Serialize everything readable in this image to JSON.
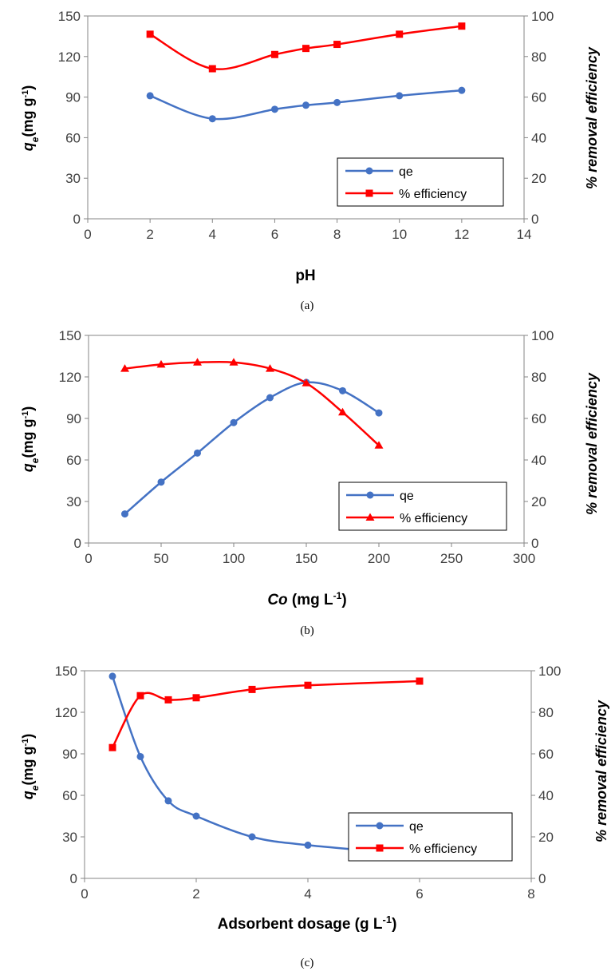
{
  "colors": {
    "qe": "#4472C4",
    "efficiency": "#FF0000",
    "axis": "#868686"
  },
  "chart_data": [
    {
      "type": "line",
      "caption": "(a)",
      "xlabel": "pH",
      "ylabel_main": "q",
      "ylabel_sub": "e",
      "ylabel_rest": "(mg g",
      "ylabel_sup": "-1",
      "ylabel_end": ")",
      "y2label": "% removal efficiency",
      "xlim": [
        0,
        14
      ],
      "ylim": [
        0,
        150
      ],
      "y2lim": [
        0,
        100
      ],
      "xticks": [
        0,
        2,
        4,
        6,
        8,
        10,
        12,
        14
      ],
      "yticks": [
        0,
        30,
        60,
        90,
        120,
        150
      ],
      "y2ticks": [
        0,
        20,
        40,
        60,
        80,
        100
      ],
      "legend_position": "bottom-right",
      "series": [
        {
          "name": "qe",
          "axis": "left",
          "marker": "circle",
          "x": [
            2,
            4,
            6,
            7,
            8,
            10,
            12
          ],
          "y": [
            91,
            74,
            81,
            84,
            86,
            91,
            95
          ]
        },
        {
          "name": "% efficiency",
          "axis": "right",
          "marker": "square",
          "x": [
            2,
            4,
            6,
            7,
            8,
            10,
            12
          ],
          "y": [
            91,
            74,
            81,
            84,
            86,
            91,
            95
          ]
        }
      ]
    },
    {
      "type": "line",
      "caption": "(b)",
      "xlabel_italic": "Co",
      "xlabel_rest": " (mg L",
      "xlabel_sup": "-1",
      "xlabel_end": ")",
      "ylabel_main": "q",
      "ylabel_sub": "e",
      "ylabel_rest": "(mg g",
      "ylabel_sup": "-1",
      "ylabel_end": ")",
      "y2label": "%  removal efficiency",
      "xlim": [
        0,
        300
      ],
      "ylim": [
        0,
        150
      ],
      "y2lim": [
        0,
        100
      ],
      "xticks": [
        0,
        50,
        100,
        150,
        200,
        250,
        300
      ],
      "yticks": [
        0,
        30,
        60,
        90,
        120,
        150
      ],
      "y2ticks": [
        0,
        20,
        40,
        60,
        80,
        100
      ],
      "legend_position": "bottom-right",
      "series": [
        {
          "name": "qe",
          "axis": "left",
          "marker": "circle",
          "x": [
            25,
            50,
            75,
            100,
            125,
            150,
            175,
            200
          ],
          "y": [
            21,
            44,
            65,
            87,
            105,
            116,
            110,
            94
          ]
        },
        {
          "name": "% efficiency",
          "axis": "right",
          "marker": "triangle",
          "x": [
            25,
            50,
            75,
            100,
            125,
            150,
            175,
            200
          ],
          "y": [
            84,
            86,
            87,
            87,
            84,
            77,
            63,
            47
          ]
        }
      ]
    },
    {
      "type": "line",
      "caption": "(c)",
      "xlabel": "Adsorbent dosage (g L",
      "xlabel_sup": "-1",
      "xlabel_end": ")",
      "ylabel_main": "q",
      "ylabel_sub": "e",
      "ylabel_rest": "(mg g",
      "ylabel_sup": "-1",
      "ylabel_end": ")",
      "y2label": "% removal efficiency",
      "xlim": [
        0,
        8
      ],
      "ylim": [
        0,
        150
      ],
      "y2lim": [
        0,
        100
      ],
      "xticks": [
        0,
        2,
        4,
        6,
        8
      ],
      "yticks": [
        0,
        30,
        60,
        90,
        120,
        150
      ],
      "y2ticks": [
        0,
        20,
        40,
        60,
        80,
        100
      ],
      "legend_position": "center-right",
      "series": [
        {
          "name": "qe",
          "axis": "left",
          "marker": "circle",
          "x": [
            0.5,
            1,
            1.5,
            2,
            3,
            4,
            6
          ],
          "y": [
            146,
            88,
            56,
            45,
            30,
            24,
            17
          ]
        },
        {
          "name": "% efficiency",
          "axis": "right",
          "marker": "square",
          "x": [
            0.5,
            1,
            1.5,
            2,
            3,
            4,
            6
          ],
          "y": [
            63,
            88,
            86,
            87,
            91,
            93,
            95
          ]
        }
      ]
    }
  ]
}
